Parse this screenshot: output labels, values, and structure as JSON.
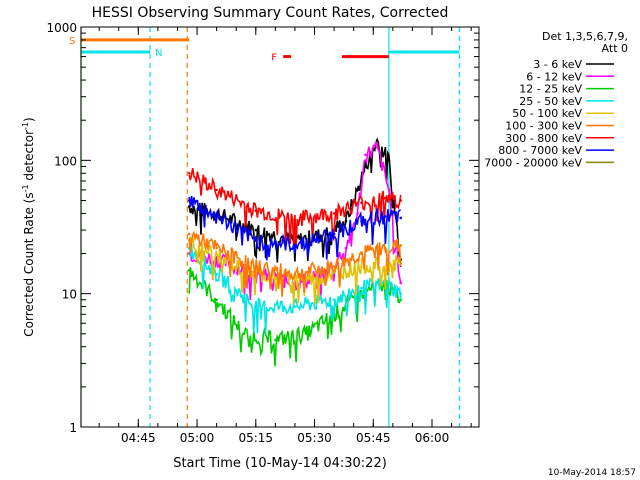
{
  "chart_data": {
    "type": "line",
    "title": "HESSI Observing Summary Count Rates, Corrected",
    "xlabel": "Start Time (10-May-14 04:30:22)",
    "ylabel_parts": [
      "Corrected Count Rate (s",
      "-1",
      " detector",
      "-1",
      ")"
    ],
    "yscale": "log",
    "ylim": [
      1,
      1000
    ],
    "xlim": [
      "04:30:22",
      "06:12:00"
    ],
    "x_ticks": [
      "04:45",
      "05:00",
      "05:15",
      "05:30",
      "05:45",
      "06:00"
    ],
    "y_ticks": [
      "1",
      "10",
      "100",
      "1000"
    ],
    "timestamp": "10-May-2014 18:57",
    "legend_position": "right",
    "legend_header": [
      "Det 1,3,5,6,7,9,",
      "Att 0"
    ],
    "series": [
      {
        "name": "3 - 6 keV",
        "color": "#000000",
        "x": [
          "04:58",
          "05:05",
          "05:15",
          "05:25",
          "05:33",
          "05:38",
          "05:41",
          "05:43",
          "05:46",
          "05:49",
          "05:52"
        ],
        "values": [
          45,
          40,
          30,
          25,
          28,
          35,
          60,
          90,
          140,
          100,
          18
        ]
      },
      {
        "name": "6 - 12 keV",
        "color": "#ff00ff",
        "x": [
          "04:58",
          "05:05",
          "05:15",
          "05:25",
          "05:33",
          "05:38",
          "05:41",
          "05:43",
          "05:46",
          "05:49",
          "05:52"
        ],
        "values": [
          20,
          18,
          14,
          12,
          14,
          22,
          40,
          110,
          125,
          60,
          12
        ]
      },
      {
        "name": "12 - 25 keV",
        "color": "#00cc00",
        "x": [
          "04:58",
          "05:05",
          "05:12",
          "05:20",
          "05:28",
          "05:35",
          "05:42",
          "05:48",
          "05:52"
        ],
        "values": [
          15,
          9,
          5,
          4.5,
          5,
          7,
          10,
          12,
          9
        ]
      },
      {
        "name": "25 - 50 keV",
        "color": "#00e5e5",
        "x": [
          "04:58",
          "05:05",
          "05:15",
          "05:25",
          "05:35",
          "05:42",
          "05:48",
          "05:52"
        ],
        "values": [
          22,
          14,
          8,
          8,
          9,
          11,
          12,
          10
        ]
      },
      {
        "name": "50 - 100 keV",
        "color": "#e0c000",
        "x": [
          "04:58",
          "05:10",
          "05:20",
          "05:30",
          "05:42",
          "05:52"
        ],
        "values": [
          25,
          16,
          13,
          13,
          16,
          17
        ]
      },
      {
        "name": "100 - 300 keV",
        "color": "#ff7700",
        "x": [
          "04:58",
          "05:05",
          "05:15",
          "05:25",
          "05:35",
          "05:42",
          "05:48",
          "05:52"
        ],
        "values": [
          28,
          22,
          16,
          14,
          16,
          20,
          22,
          23
        ]
      },
      {
        "name": "300 - 800 keV",
        "color": "#ff0000",
        "x": [
          "04:58",
          "05:05",
          "05:15",
          "05:25",
          "05:35",
          "05:42",
          "05:48",
          "05:52"
        ],
        "values": [
          80,
          60,
          42,
          36,
          40,
          48,
          52,
          50
        ]
      },
      {
        "name": "800 - 7000 keV",
        "color": "#0000ff",
        "x": [
          "04:58",
          "05:05",
          "05:15",
          "05:25",
          "05:35",
          "05:42",
          "05:48",
          "05:52"
        ],
        "values": [
          50,
          38,
          25,
          23,
          28,
          35,
          38,
          37
        ]
      },
      {
        "name": "7000 - 20000 keV",
        "color": "#888800",
        "x": [],
        "values": []
      }
    ],
    "flag_bars": [
      {
        "label": "S",
        "color": "#ff7700",
        "start": "04:30:22",
        "end": "04:58",
        "value": 800
      },
      {
        "label": "N",
        "color": "#00e5e5",
        "start": "04:30:22",
        "end": "04:48",
        "value": 650
      },
      {
        "label": "F",
        "color": "#ff0000",
        "start": "05:22",
        "end": "05:24",
        "value": 600
      },
      {
        "label": "",
        "color": "#ff0000",
        "start": "05:37",
        "end": "05:49",
        "value": 600
      },
      {
        "label": "",
        "color": "#00e5e5",
        "start": "05:49",
        "end": "06:07",
        "value": 650
      }
    ],
    "markers": [
      {
        "time": "04:48",
        "color": "#00e5e5",
        "style": "dashed"
      },
      {
        "time": "04:57:30",
        "color": "#ff7700",
        "style": "dashed"
      },
      {
        "time": "05:49",
        "color": "#00e5e5",
        "style": "solid"
      },
      {
        "time": "06:07",
        "color": "#00e5e5",
        "style": "dashed"
      },
      {
        "time": "04:30:22",
        "color": "#00cc00",
        "style": "solid"
      }
    ]
  }
}
